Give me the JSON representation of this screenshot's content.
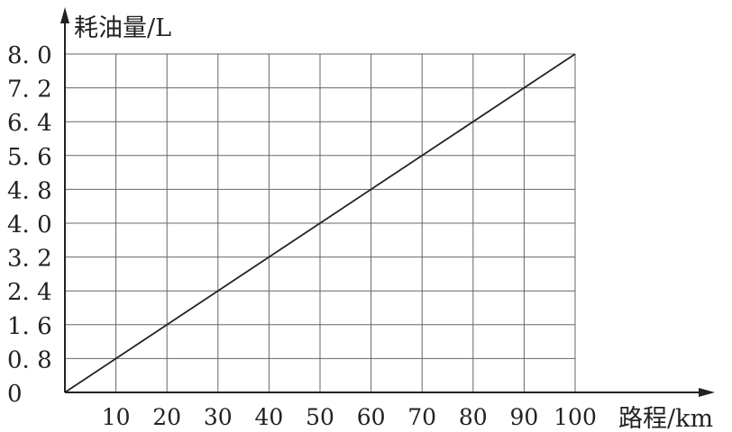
{
  "chart_data": {
    "type": "line",
    "title": "",
    "xlabel": "路程/km",
    "ylabel": "耗油量/L",
    "xlim": [
      0,
      100
    ],
    "ylim": [
      0,
      8.0
    ],
    "grid": true,
    "x_ticks": [
      "10",
      "20",
      "30",
      "40",
      "50",
      "60",
      "70",
      "80",
      "90",
      "100"
    ],
    "y_ticks": [
      "0",
      "0. 8",
      "1. 6",
      "2. 4",
      "3. 2",
      "4. 0",
      "4. 8",
      "5. 6",
      "6. 4",
      "7. 2",
      "8. 0"
    ],
    "series": [
      {
        "x": [
          0,
          100
        ],
        "y": [
          0,
          8.0
        ],
        "color": "#222222"
      }
    ]
  }
}
